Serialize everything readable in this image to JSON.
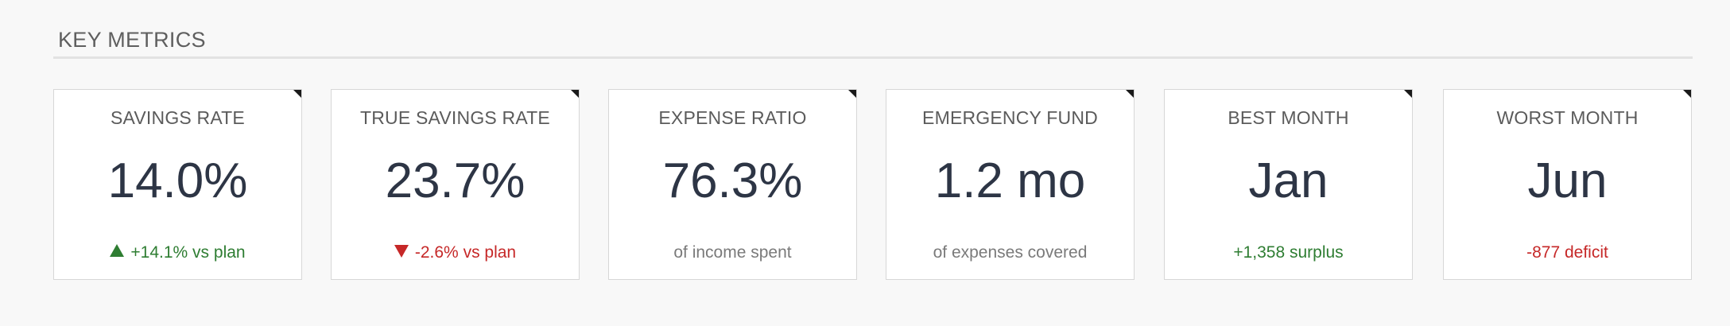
{
  "section": {
    "title": "KEY METRICS"
  },
  "colors": {
    "positive": "#2e7d32",
    "negative": "#c62828",
    "neutral": "#7a7a7a",
    "value": "#2d3545"
  },
  "cards": [
    {
      "label": "SAVINGS RATE",
      "value": "14.0%",
      "footer_icon": "triangle-up-icon",
      "footer": "+14.1% vs plan",
      "footer_tone": "positive"
    },
    {
      "label": "TRUE SAVINGS RATE",
      "value": "23.7%",
      "footer_icon": "triangle-down-icon",
      "footer": "-2.6% vs plan",
      "footer_tone": "negative"
    },
    {
      "label": "EXPENSE RATIO",
      "value": "76.3%",
      "footer": "of income spent",
      "footer_tone": "neutral"
    },
    {
      "label": "EMERGENCY FUND",
      "value": "1.2 mo",
      "footer": "of expenses covered",
      "footer_tone": "neutral"
    },
    {
      "label": "BEST MONTH",
      "value": "Jan",
      "footer": "+1,358 surplus",
      "footer_tone": "positive"
    },
    {
      "label": "WORST MONTH",
      "value": "Jun",
      "footer": "-877 deficit",
      "footer_tone": "negative"
    }
  ]
}
